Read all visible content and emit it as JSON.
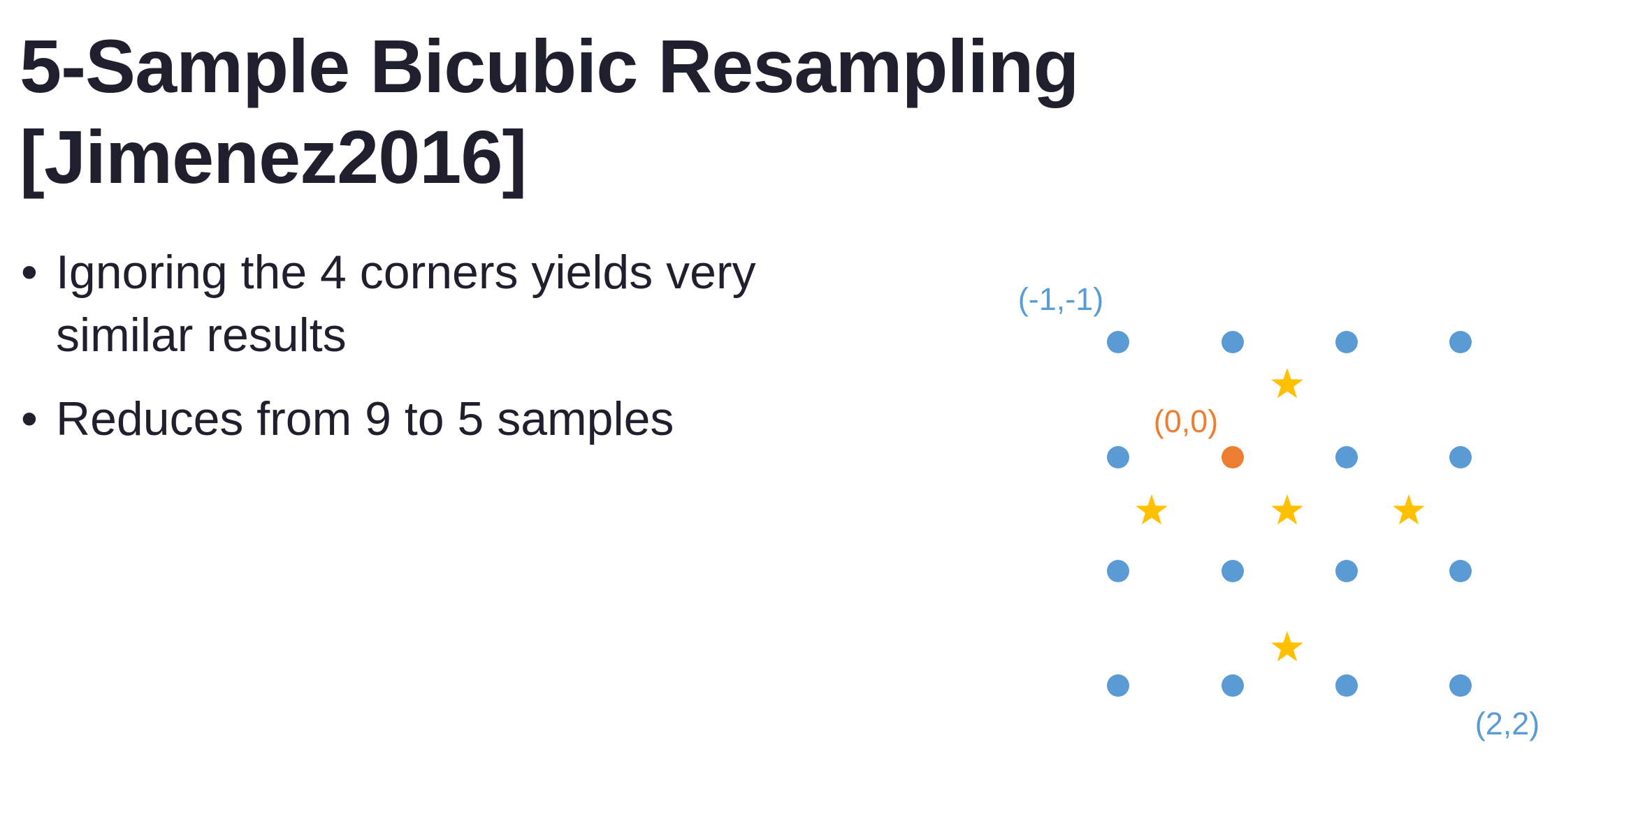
{
  "title": "5-Sample Bicubic Resampling [Jimenez2016]",
  "bullets": [
    "Ignoring the 4 corners yields very similar results",
    "Reduces from 9 to 5 samples"
  ],
  "diagram": {
    "labels": [
      "(-1,-1)",
      "(0,0)",
      "(2,2)"
    ]
  }
}
